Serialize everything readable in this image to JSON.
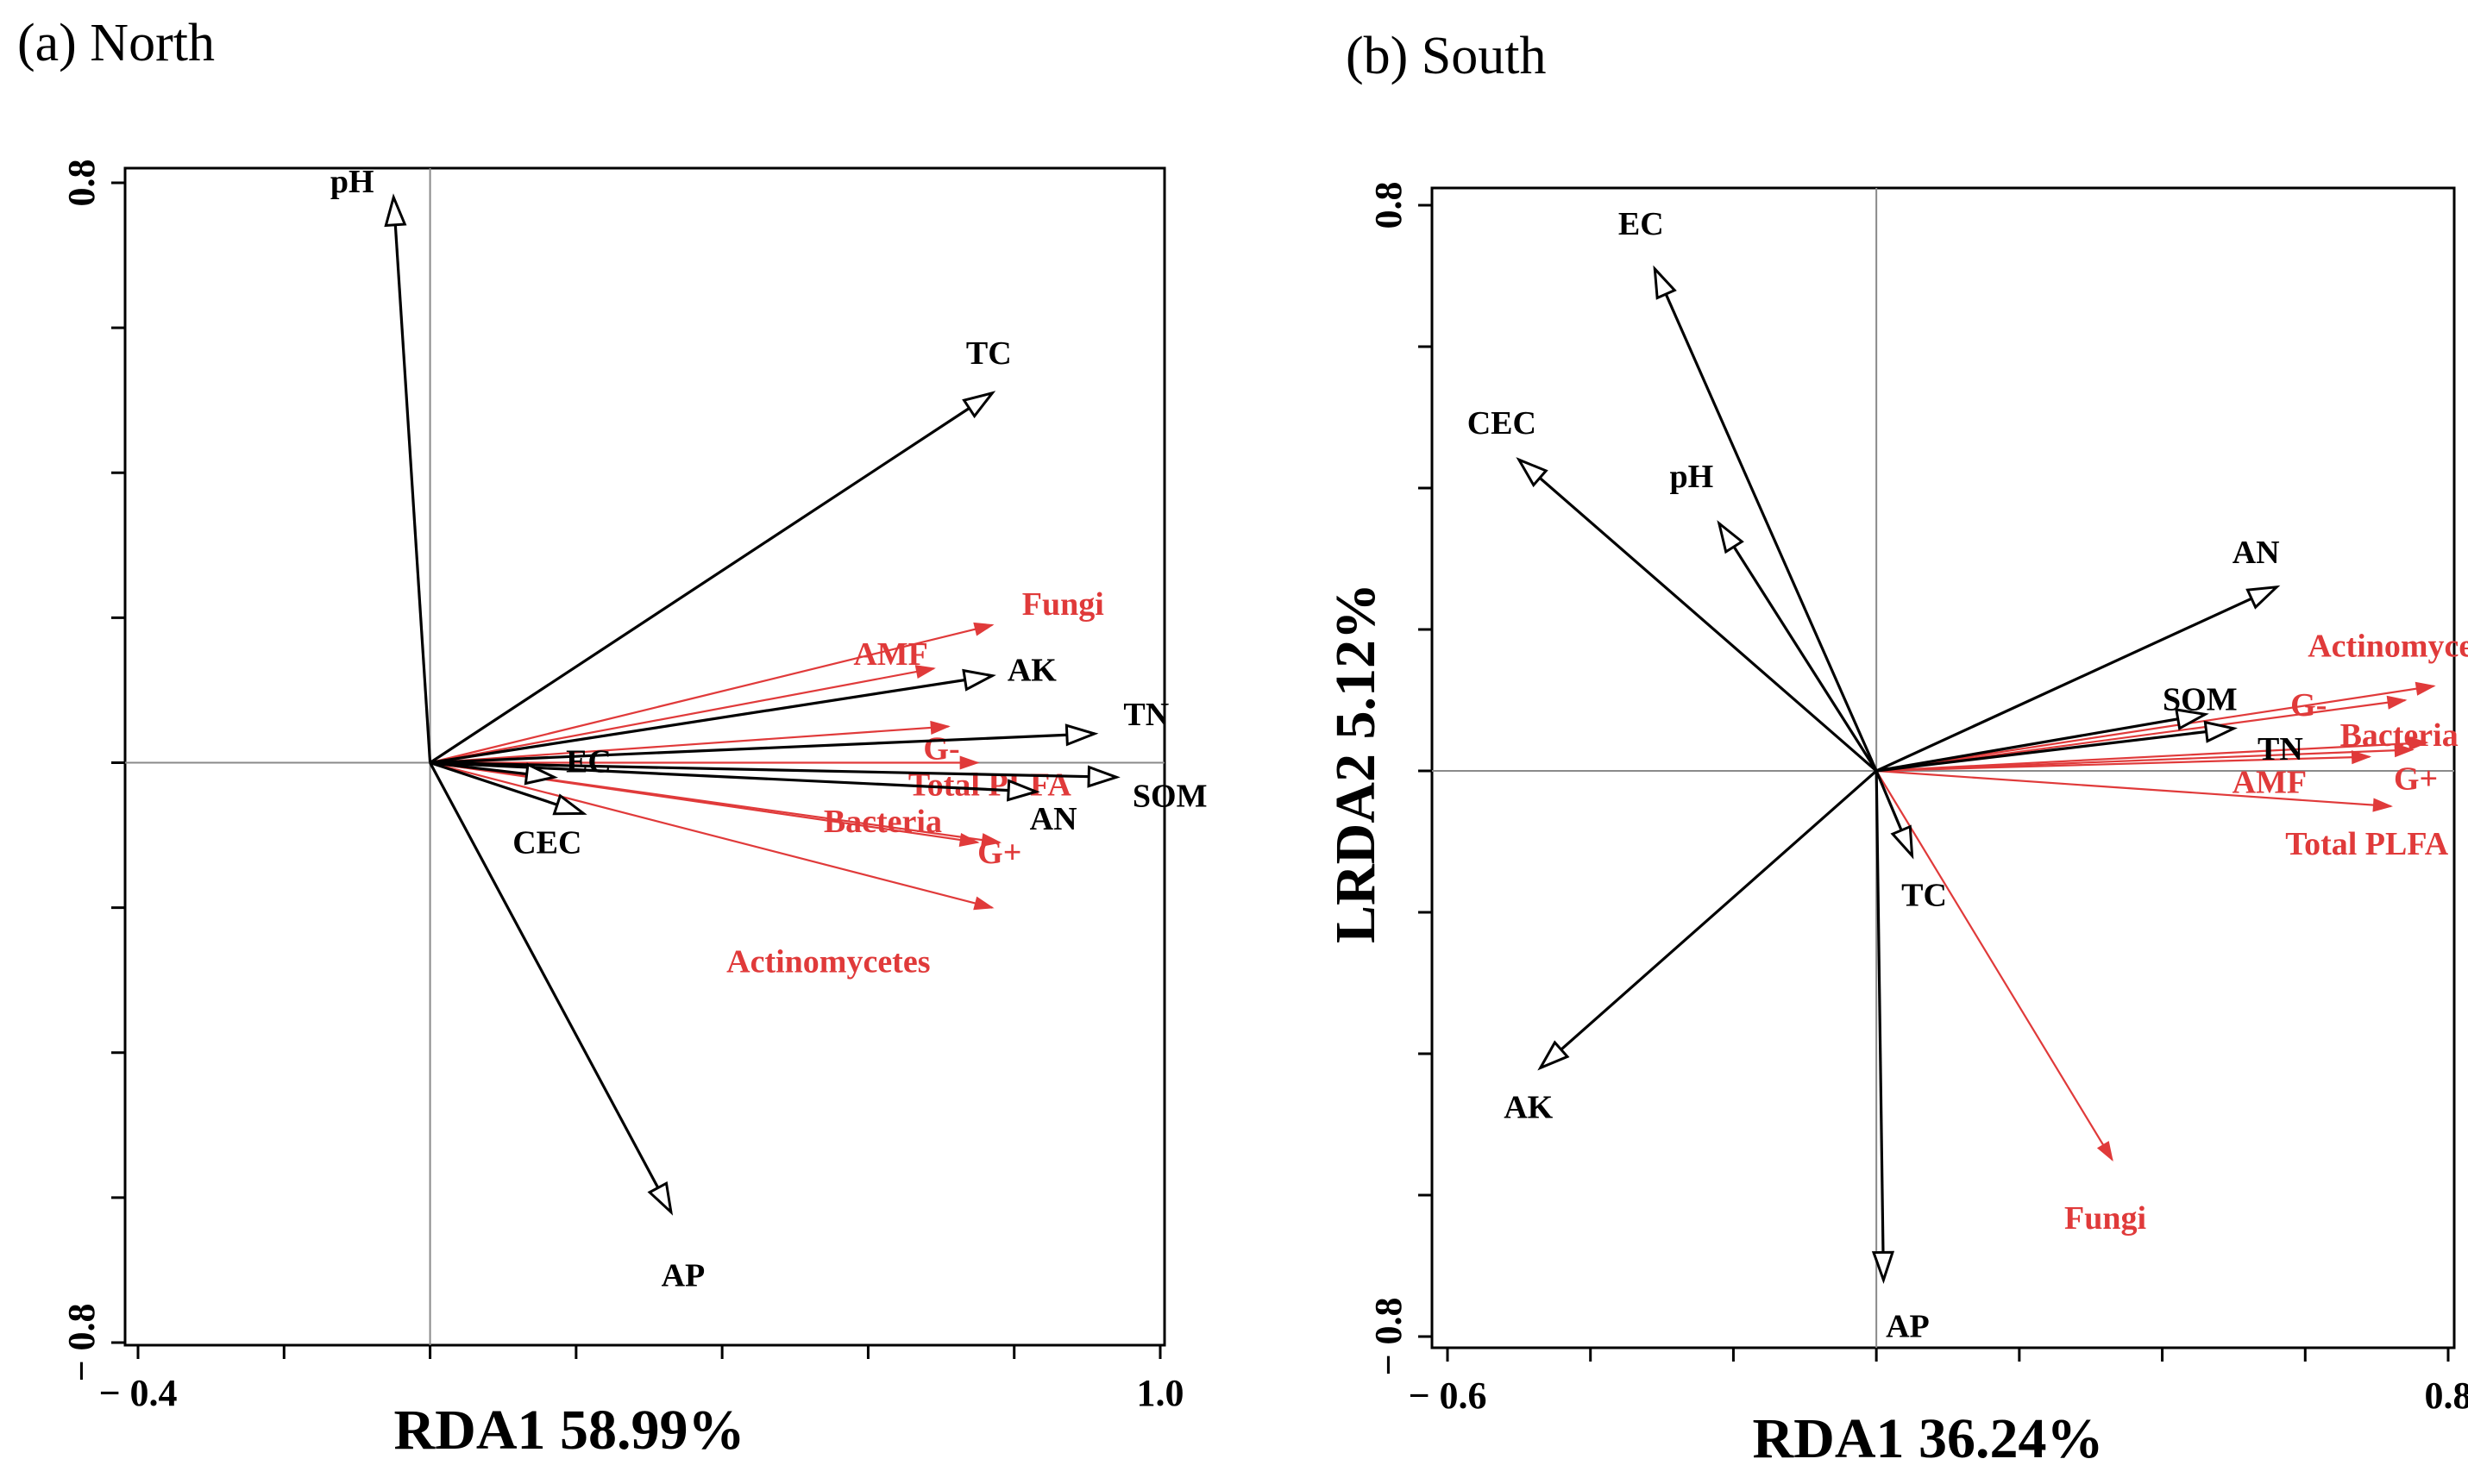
{
  "colors": {
    "env": "#000000",
    "plfa": "#e03a3a"
  },
  "chart_data": [
    {
      "type": "rda-biplot",
      "title": "(a) North",
      "xlabel": "RDA1 58.99%",
      "ylabel": "",
      "xlim": [
        -0.4,
        1.0
      ],
      "ylim": [
        -0.8,
        0.8
      ],
      "x_tick_labels": [
        {
          "value": -0.4,
          "label": "− 0.4"
        },
        {
          "value": 1.0,
          "label": "1.0"
        }
      ],
      "y_tick_labels": [
        {
          "value": 0.8,
          "label": "0.8"
        },
        {
          "value": -0.8,
          "label": "− 0.8"
        }
      ],
      "env_vectors": [
        {
          "name": "pH",
          "x": -0.05,
          "y": 0.78
        },
        {
          "name": "TC",
          "x": 0.77,
          "y": 0.51
        },
        {
          "name": "AK",
          "x": 0.77,
          "y": 0.12
        },
        {
          "name": "TN",
          "x": 0.91,
          "y": 0.04
        },
        {
          "name": "SOM",
          "x": 0.94,
          "y": -0.02
        },
        {
          "name": "AN",
          "x": 0.83,
          "y": -0.04
        },
        {
          "name": "EC",
          "x": 0.17,
          "y": -0.02
        },
        {
          "name": "CEC",
          "x": 0.21,
          "y": -0.07
        },
        {
          "name": "AP",
          "x": 0.33,
          "y": -0.62
        }
      ],
      "plfa_vectors": [
        {
          "name": "Fungi",
          "x": 0.77,
          "y": 0.19
        },
        {
          "name": "AMF",
          "x": 0.69,
          "y": 0.13
        },
        {
          "name": "G-",
          "x": 0.71,
          "y": 0.05
        },
        {
          "name": "Total PLFA",
          "x": 0.75,
          "y": 0.0
        },
        {
          "name": "Bacteria",
          "x": 0.75,
          "y": -0.11
        },
        {
          "name": "G+",
          "x": 0.78,
          "y": -0.11
        },
        {
          "name": "Actinomycetes",
          "x": 0.77,
          "y": -0.2
        }
      ]
    },
    {
      "type": "rda-biplot",
      "title": "(b) South",
      "xlabel": "RDA1 36.24%",
      "ylabel": "LRDA2 5.12%",
      "xlim": [
        -0.6,
        0.8
      ],
      "ylim": [
        -0.8,
        0.8
      ],
      "x_tick_labels": [
        {
          "value": -0.6,
          "label": "− 0.6"
        },
        {
          "value": 0.8,
          "label": "0.8"
        }
      ],
      "y_tick_labels": [
        {
          "value": 0.8,
          "label": "0.8"
        },
        {
          "value": -0.8,
          "label": "− 0.8"
        }
      ],
      "env_vectors": [
        {
          "name": "EC",
          "x": -0.31,
          "y": 0.71
        },
        {
          "name": "CEC",
          "x": -0.5,
          "y": 0.44
        },
        {
          "name": "pH",
          "x": -0.22,
          "y": 0.35
        },
        {
          "name": "AN",
          "x": 0.56,
          "y": 0.26
        },
        {
          "name": "SOM",
          "x": 0.46,
          "y": 0.08
        },
        {
          "name": "TN",
          "x": 0.5,
          "y": 0.06
        },
        {
          "name": "TC",
          "x": 0.05,
          "y": -0.12
        },
        {
          "name": "AK",
          "x": -0.47,
          "y": -0.42
        },
        {
          "name": "AP",
          "x": 0.01,
          "y": -0.72
        }
      ],
      "plfa_vectors": [
        {
          "name": "Actinomycetes",
          "x": 0.78,
          "y": 0.12
        },
        {
          "name": "G-",
          "x": 0.74,
          "y": 0.1
        },
        {
          "name": "Bacteria",
          "x": 0.77,
          "y": 0.04
        },
        {
          "name": "AMF",
          "x": 0.69,
          "y": 0.02
        },
        {
          "name": "G+",
          "x": 0.75,
          "y": 0.03
        },
        {
          "name": "Total PLFA",
          "x": 0.72,
          "y": -0.05
        },
        {
          "name": "Fungi",
          "x": 0.33,
          "y": -0.55
        }
      ]
    }
  ]
}
